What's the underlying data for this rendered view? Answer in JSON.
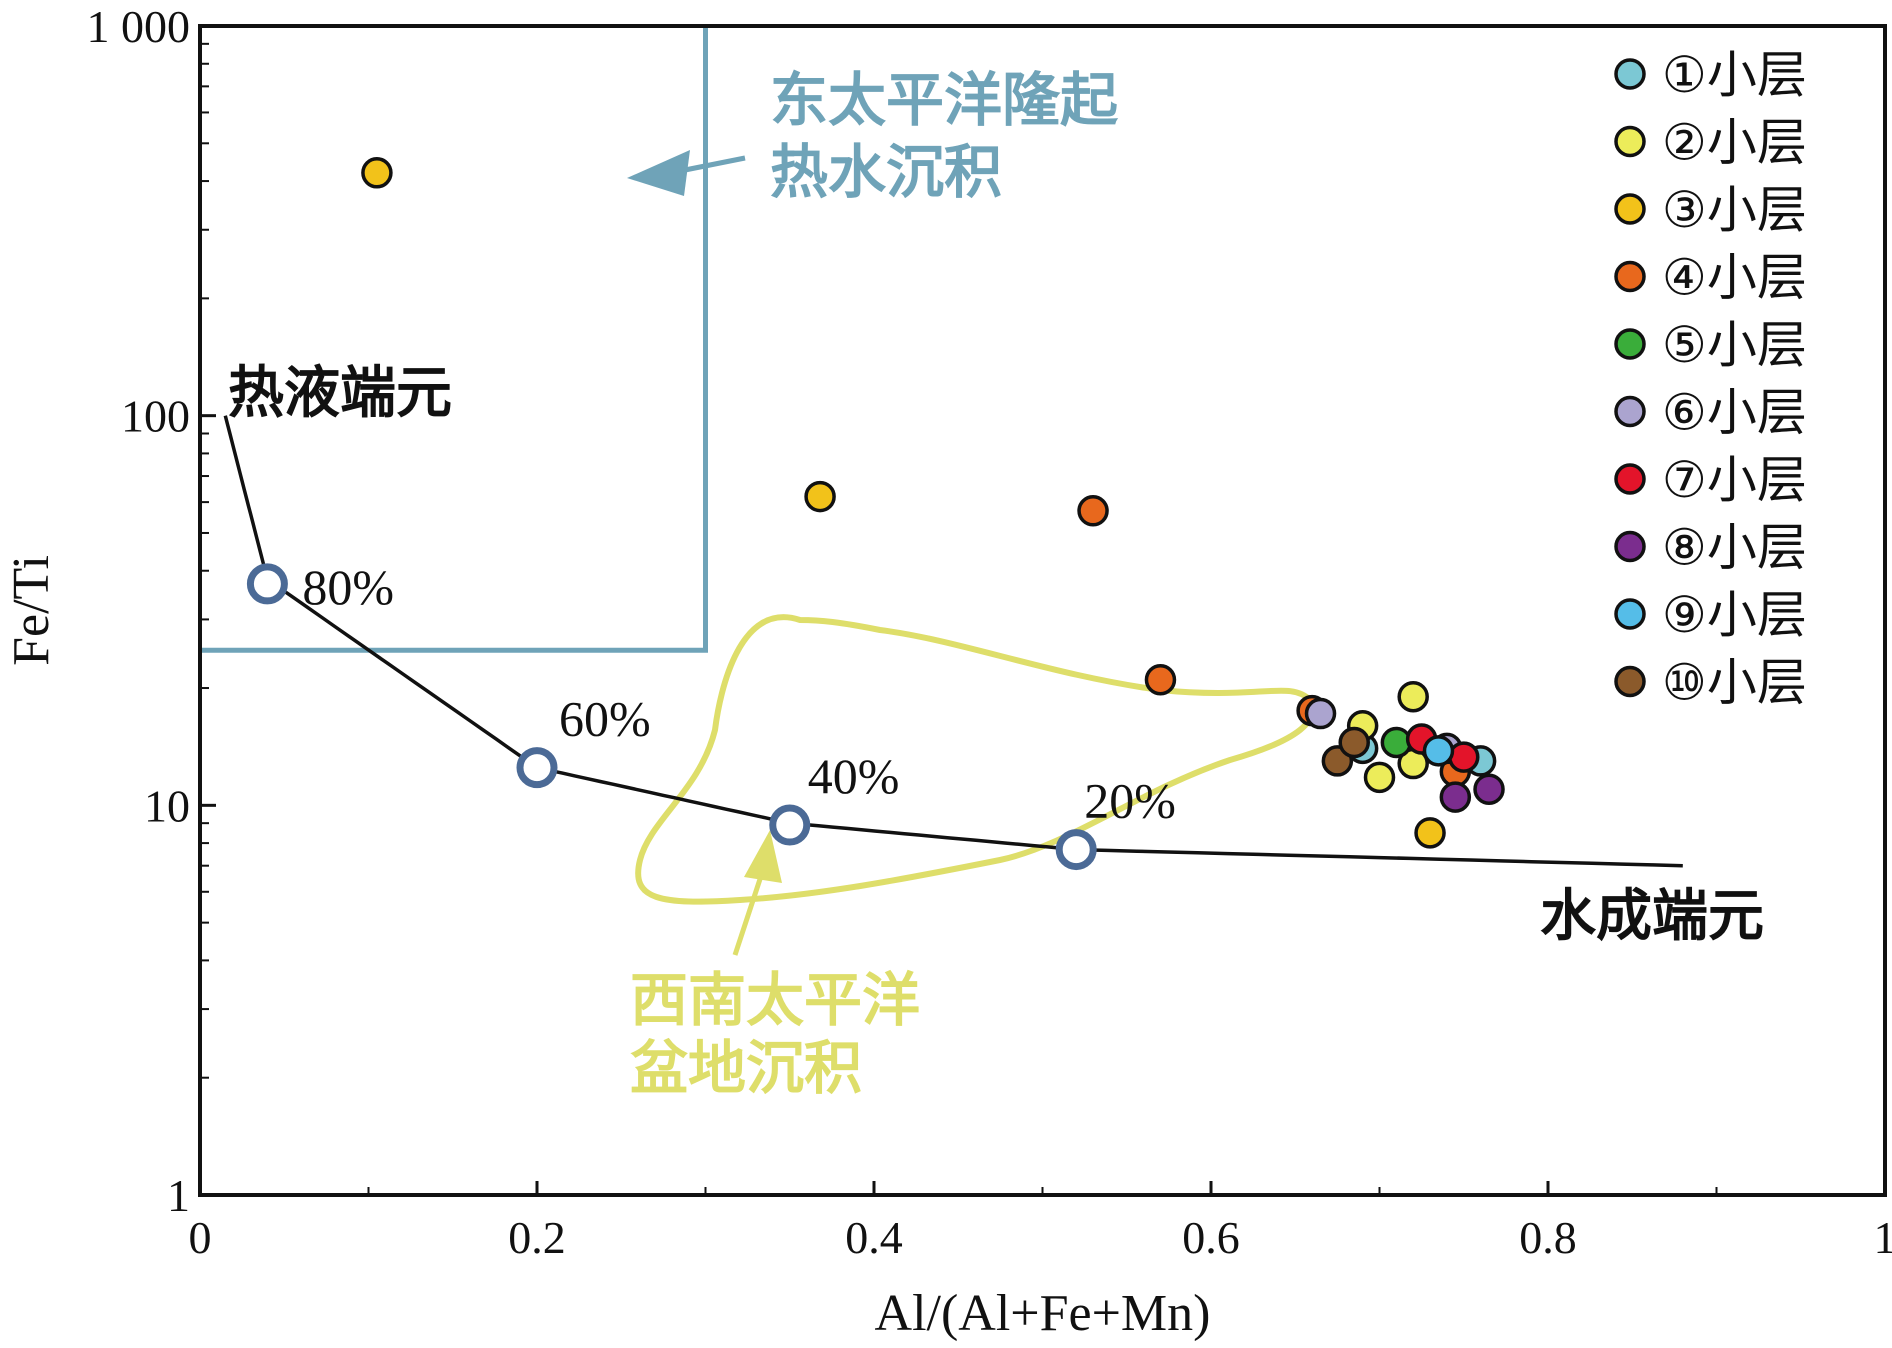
{
  "chart_data": {
    "type": "scatter",
    "xlabel": "Al/(Al+Fe+Mn)",
    "ylabel": "Fe/Ti",
    "xlim": [
      0,
      1
    ],
    "ylim": [
      1,
      1000
    ],
    "y_scale": "log",
    "x_ticks": [
      0,
      0.2,
      0.4,
      0.6,
      0.8,
      1
    ],
    "x_tick_labels": [
      "0",
      "0.2",
      "0.4",
      "0.6",
      "0.8",
      "1"
    ],
    "y_ticks": [
      1,
      10,
      100,
      1000
    ],
    "y_tick_labels": [
      "1",
      "10",
      "100",
      "1 000"
    ],
    "grid": false,
    "legend_position": "top-right",
    "series": [
      {
        "name": "①小层",
        "color": "#7cc8d4",
        "points": [
          [
            0.69,
            14
          ],
          [
            0.76,
            13
          ]
        ]
      },
      {
        "name": "②小层",
        "color": "#ecec5a",
        "points": [
          [
            0.72,
            19
          ],
          [
            0.69,
            16
          ],
          [
            0.7,
            11.8
          ],
          [
            0.72,
            12.8
          ]
        ]
      },
      {
        "name": "③小层",
        "color": "#f2c21a",
        "points": [
          [
            0.105,
            420
          ],
          [
            0.368,
            62
          ],
          [
            0.73,
            8.5
          ]
        ]
      },
      {
        "name": "④小层",
        "color": "#e8681d",
        "points": [
          [
            0.53,
            57
          ],
          [
            0.57,
            21
          ],
          [
            0.66,
            17.5
          ],
          [
            0.745,
            12.2
          ]
        ]
      },
      {
        "name": "⑤小层",
        "color": "#3aad3a",
        "points": [
          [
            0.71,
            14.5
          ]
        ]
      },
      {
        "name": "⑥小层",
        "color": "#aba4cf",
        "points": [
          [
            0.665,
            17.2
          ],
          [
            0.74,
            14
          ]
        ]
      },
      {
        "name": "⑦小层",
        "color": "#e3142a",
        "points": [
          [
            0.725,
            14.8
          ],
          [
            0.75,
            13.3
          ]
        ]
      },
      {
        "name": "⑧小层",
        "color": "#7b2d8e",
        "points": [
          [
            0.745,
            10.5
          ],
          [
            0.765,
            11
          ]
        ]
      },
      {
        "name": "⑨小层",
        "color": "#55bde8",
        "points": [
          [
            0.735,
            13.8
          ]
        ]
      },
      {
        "name": "⑩小层",
        "color": "#8b5a2b",
        "points": [
          [
            0.675,
            13
          ],
          [
            0.685,
            14.5
          ]
        ]
      }
    ],
    "mixing_curve": {
      "points": [
        [
          0.015,
          100
        ],
        [
          0.04,
          38
        ],
        [
          0.2,
          12.5
        ],
        [
          0.35,
          9
        ],
        [
          0.52,
          7.7
        ],
        [
          0.88,
          7.0
        ]
      ],
      "markers": [
        {
          "x": 0.04,
          "y": 37,
          "label": "80%"
        },
        {
          "x": 0.2,
          "y": 12.5,
          "label": "60%"
        },
        {
          "x": 0.35,
          "y": 8.9,
          "label": "40%"
        },
        {
          "x": 0.52,
          "y": 7.7,
          "label": "20%"
        }
      ],
      "start_label": "热液端元",
      "end_label": "水成端元"
    },
    "regions": [
      {
        "name": "东太平洋隆起热水沉积",
        "label_lines": [
          "东太平洋隆起",
          "热水沉积"
        ],
        "color": "#6fa3b8",
        "bounds_x": [
          0,
          0.3
        ],
        "bounds_y": [
          25,
          1000
        ]
      },
      {
        "name": "西南太平洋盆地沉积",
        "label_lines": [
          "西南太平洋",
          "盆地沉积"
        ],
        "color": "#dede6a"
      }
    ],
    "marker_color": "#4b6a96"
  }
}
